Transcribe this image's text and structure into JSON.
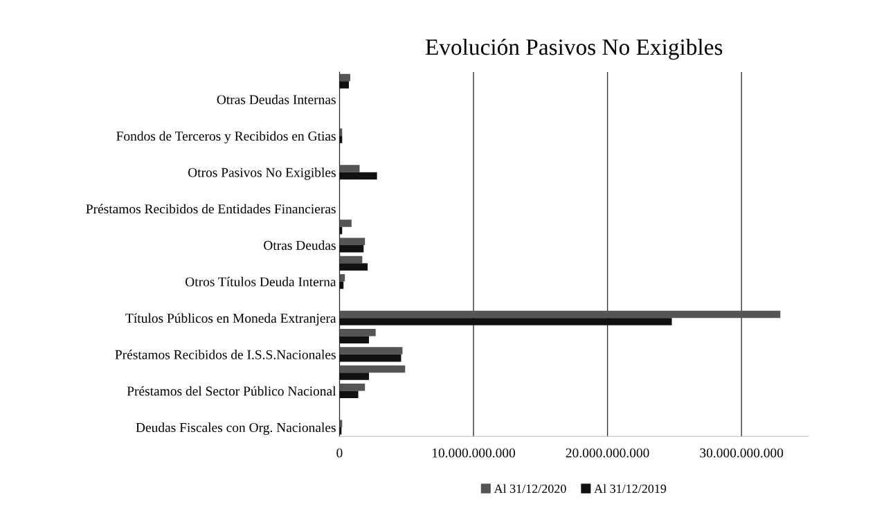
{
  "chart_data": {
    "type": "bar",
    "orientation": "horizontal",
    "title": "Evolución Pasivos No Exigibles",
    "categories": [
      null,
      "Otras Deudas Internas",
      null,
      "Fondos de Terceros y Recibidos en Gtias",
      null,
      "Otros Pasivos No Exigibles",
      null,
      "Préstamos Recibidos de Entidades Financieras",
      null,
      "Otras Deudas",
      null,
      "Otros Títulos Deuda Interna",
      null,
      "Títulos Públicos en Moneda Extranjera",
      null,
      "Préstamos Recibidos de I.S.S.Nacionales",
      null,
      "Préstamos del Sector Público Nacional",
      null,
      "Deudas Fiscales con Org. Nacionales"
    ],
    "series": [
      {
        "name": "Al 31/12/2020",
        "color": "#555555",
        "values": [
          800000000,
          0,
          0,
          200000000,
          0,
          1500000000,
          0,
          0,
          900000000,
          1900000000,
          1700000000,
          400000000,
          0,
          32900000000,
          2700000000,
          4700000000,
          4900000000,
          1900000000,
          null,
          200000000
        ]
      },
      {
        "name": "Al 31/12/2019",
        "color": "#111111",
        "values": [
          700000000,
          0,
          0,
          200000000,
          0,
          2800000000,
          0,
          0,
          200000000,
          1800000000,
          2100000000,
          300000000,
          0,
          24800000000,
          2200000000,
          4600000000,
          2200000000,
          1400000000,
          null,
          150000000
        ]
      }
    ],
    "xlim": [
      0,
      35000000000
    ],
    "xticks": [
      0,
      {
        "value": 10000000000,
        "label": "10.000.000.000"
      },
      {
        "value": 20000000000,
        "label": "20.000.000.000"
      },
      {
        "value": 30000000000,
        "label": "30.000.000.000"
      }
    ],
    "grid": "x",
    "legend": "bottom"
  }
}
